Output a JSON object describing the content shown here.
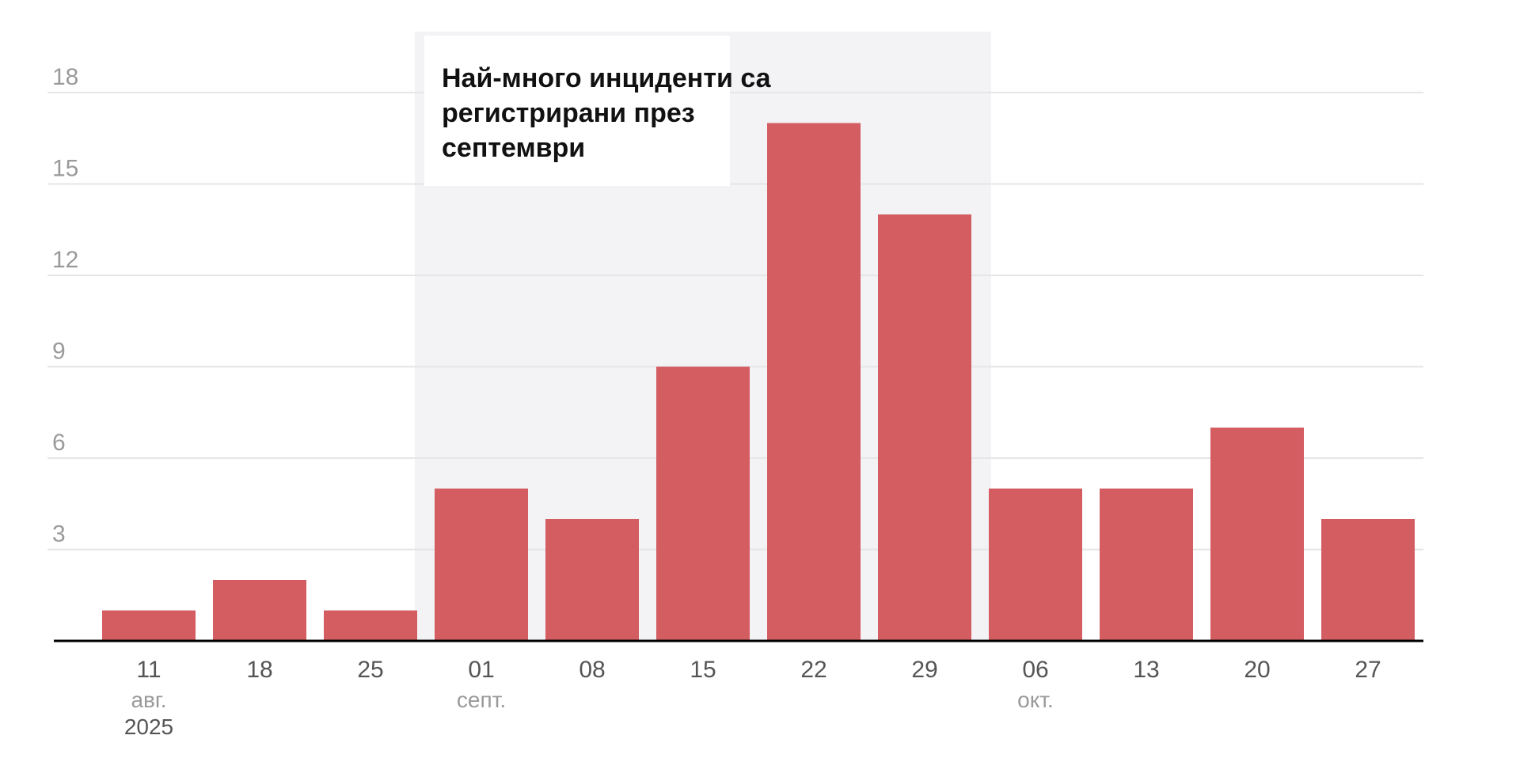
{
  "chart_data": {
    "type": "bar",
    "title": "",
    "xlabel": "",
    "ylabel": "",
    "categories": [
      "11",
      "18",
      "25",
      "01",
      "08",
      "15",
      "22",
      "29",
      "06",
      "13",
      "20",
      "27"
    ],
    "values": [
      1,
      2,
      1,
      5,
      4,
      9,
      17,
      14,
      5,
      5,
      7,
      4
    ],
    "ylim": [
      0,
      18
    ],
    "yticks": [
      3,
      6,
      9,
      12,
      15,
      18
    ],
    "month_labels": [
      {
        "index": 0,
        "label": "авг.",
        "year": "2025"
      },
      {
        "index": 3,
        "label": "септ."
      },
      {
        "index": 8,
        "label": "окт."
      }
    ],
    "highlight": {
      "from_index": 3,
      "to_index": 7
    },
    "annotation": {
      "lines": [
        "Най-много инциденти са",
        "регистрирани през",
        "септември"
      ]
    },
    "grid": true,
    "colors": {
      "bar": "#d45d62",
      "highlight_band": "#f3f3f6",
      "axis": "#000000",
      "grid": "#e6e6e6"
    }
  }
}
